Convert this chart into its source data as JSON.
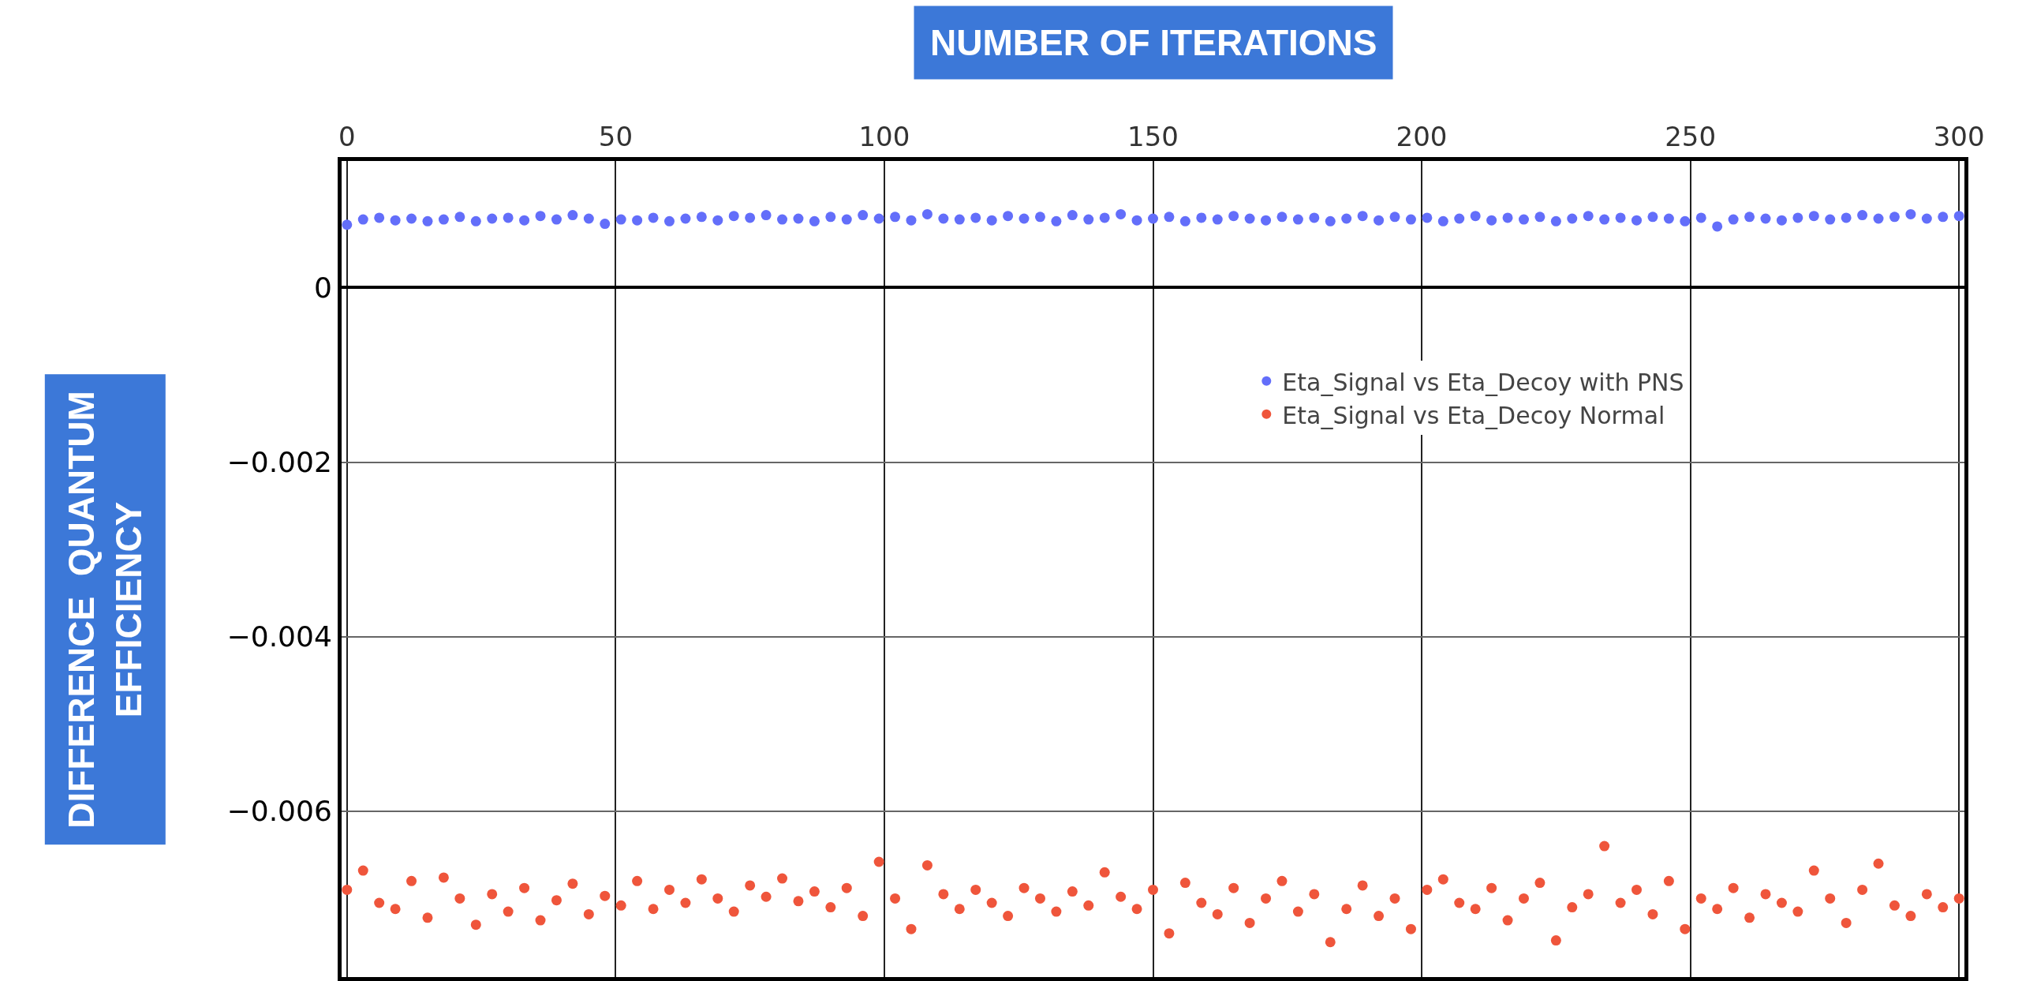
{
  "chart_data": {
    "type": "scatter",
    "xlabel": "NUMBER OF ITERATIONS",
    "ylabel": "DIFFERENCE  QUANTUM EFFICIENCY",
    "x": [
      0,
      3,
      6,
      9,
      12,
      15,
      18,
      21,
      24,
      27,
      30,
      33,
      36,
      39,
      42,
      45,
      48,
      51,
      54,
      57,
      60,
      63,
      66,
      69,
      72,
      75,
      78,
      81,
      84,
      87,
      90,
      93,
      96,
      99,
      102,
      105,
      108,
      111,
      114,
      117,
      120,
      123,
      126,
      129,
      132,
      135,
      138,
      141,
      144,
      147,
      150,
      153,
      156,
      159,
      162,
      165,
      168,
      171,
      174,
      177,
      180,
      183,
      186,
      189,
      192,
      195,
      198,
      201,
      204,
      207,
      210,
      213,
      216,
      219,
      222,
      225,
      228,
      231,
      234,
      237,
      240,
      243,
      246,
      249,
      252,
      255,
      258,
      261,
      264,
      267,
      270,
      273,
      276,
      279,
      282,
      285,
      288,
      291,
      294,
      297,
      300
    ],
    "series": [
      {
        "name": "Eta_Signal vs Eta_Decoy with PNS",
        "color": "#636efa",
        "values": [
          0.00072,
          0.00078,
          0.0008,
          0.00077,
          0.00079,
          0.00076,
          0.00078,
          0.00081,
          0.00076,
          0.00079,
          0.0008,
          0.00077,
          0.00082,
          0.00078,
          0.00083,
          0.00079,
          0.00073,
          0.00078,
          0.00077,
          0.0008,
          0.00076,
          0.00079,
          0.00081,
          0.00077,
          0.00082,
          0.0008,
          0.00083,
          0.00078,
          0.00079,
          0.00076,
          0.00081,
          0.00078,
          0.00083,
          0.00079,
          0.00081,
          0.00077,
          0.00084,
          0.00079,
          0.00078,
          0.0008,
          0.00077,
          0.00082,
          0.00079,
          0.00081,
          0.00076,
          0.00083,
          0.00078,
          0.0008,
          0.00084,
          0.00077,
          0.00079,
          0.00081,
          0.00076,
          0.0008,
          0.00078,
          0.00082,
          0.00079,
          0.00077,
          0.00081,
          0.00078,
          0.0008,
          0.00076,
          0.00079,
          0.00082,
          0.00077,
          0.00081,
          0.00078,
          0.0008,
          0.00076,
          0.00079,
          0.00082,
          0.00077,
          0.0008,
          0.00078,
          0.00081,
          0.00076,
          0.00079,
          0.00082,
          0.00078,
          0.0008,
          0.00077,
          0.00081,
          0.00079,
          0.00076,
          0.0008,
          0.0007,
          0.00078,
          0.00081,
          0.00079,
          0.00077,
          0.0008,
          0.00082,
          0.00078,
          0.0008,
          0.00083,
          0.00079,
          0.00081,
          0.00084,
          0.00079,
          0.00081,
          0.00082
        ]
      },
      {
        "name": "Eta_Signal vs Eta_Decoy Normal",
        "color": "#ef553b",
        "values": [
          -0.0069,
          -0.00668,
          -0.00705,
          -0.00712,
          -0.0068,
          -0.00722,
          -0.00676,
          -0.007,
          -0.0073,
          -0.00695,
          -0.00715,
          -0.00688,
          -0.00725,
          -0.00702,
          -0.00683,
          -0.00718,
          -0.00697,
          -0.00708,
          -0.0068,
          -0.00712,
          -0.0069,
          -0.00705,
          -0.00678,
          -0.007,
          -0.00715,
          -0.00685,
          -0.00698,
          -0.00677,
          -0.00703,
          -0.00692,
          -0.0071,
          -0.00688,
          -0.0072,
          -0.00658,
          -0.007,
          -0.00735,
          -0.00662,
          -0.00695,
          -0.00712,
          -0.0069,
          -0.00705,
          -0.0072,
          -0.00688,
          -0.007,
          -0.00715,
          -0.00692,
          -0.00708,
          -0.0067,
          -0.00698,
          -0.00712,
          -0.0069,
          -0.0074,
          -0.00682,
          -0.00705,
          -0.00718,
          -0.00688,
          -0.00728,
          -0.007,
          -0.0068,
          -0.00715,
          -0.00695,
          -0.0075,
          -0.00712,
          -0.00685,
          -0.0072,
          -0.007,
          -0.00735,
          -0.0069,
          -0.00678,
          -0.00705,
          -0.00712,
          -0.00688,
          -0.00725,
          -0.007,
          -0.00682,
          -0.00748,
          -0.0071,
          -0.00695,
          -0.0064,
          -0.00705,
          -0.0069,
          -0.00718,
          -0.0068,
          -0.00735,
          -0.007,
          -0.00712,
          -0.00688,
          -0.00722,
          -0.00695,
          -0.00705,
          -0.00715,
          -0.00668,
          -0.007,
          -0.00728,
          -0.0069,
          -0.0066,
          -0.00708,
          -0.0072,
          -0.00695,
          -0.0071,
          -0.007
        ]
      }
    ],
    "xlim": [
      -1,
      301
    ],
    "xticks": [
      0,
      50,
      100,
      150,
      200,
      250,
      300
    ],
    "ylim": [
      -0.0079,
      0.00145
    ],
    "yticks": [
      0,
      {
        "value": -0.002,
        "label": "−0.002"
      },
      {
        "value": -0.004,
        "label": "−0.004"
      },
      {
        "value": -0.006,
        "label": "−0.006"
      }
    ],
    "grid": true,
    "legend": "right",
    "marker": "circle"
  }
}
